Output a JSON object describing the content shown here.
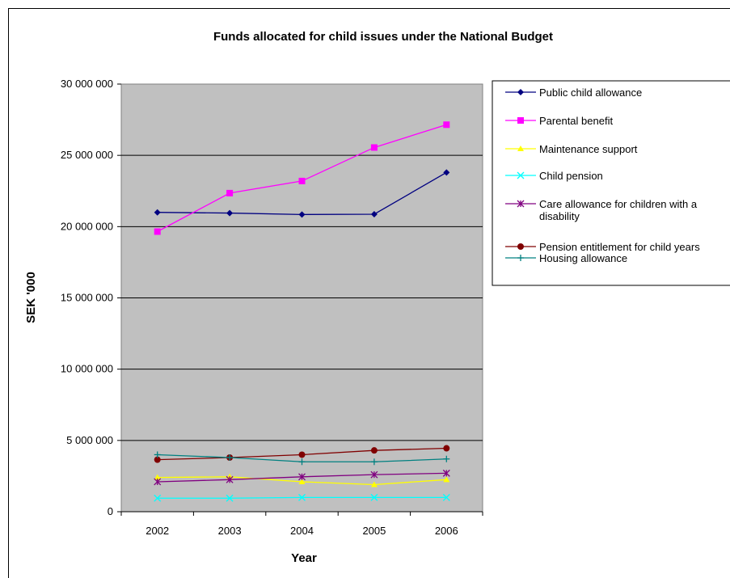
{
  "chart_data": {
    "type": "line",
    "title": "Funds allocated for child issues under the National Budget",
    "xlabel": "Year",
    "ylabel": "SEK '000",
    "categories": [
      "2002",
      "2003",
      "2004",
      "2005",
      "2006"
    ],
    "ylim": [
      0,
      30000000
    ],
    "yticks": [
      {
        "value": 0,
        "label": "0"
      },
      {
        "value": 5000000,
        "label": "5 000 000"
      },
      {
        "value": 10000000,
        "label": "10 000 000"
      },
      {
        "value": 15000000,
        "label": "15 000 000"
      },
      {
        "value": 20000000,
        "label": "20 000 000"
      },
      {
        "value": 25000000,
        "label": "25 000 000"
      },
      {
        "value": 30000000,
        "label": "30 000 000"
      }
    ],
    "grid": "horizontal",
    "plot_background": "#c0c0c0",
    "legend_position": "right",
    "series": [
      {
        "name": "Public child allowance",
        "lines": [
          "Public child allowance"
        ],
        "color": "#000080",
        "marker": "diamond",
        "values": [
          21000000,
          20950000,
          20850000,
          20870000,
          23800000
        ]
      },
      {
        "name": "Parental benefit",
        "lines": [
          "Parental benefit"
        ],
        "color": "#ff00ff",
        "marker": "square",
        "values": [
          19650000,
          22350000,
          23200000,
          25550000,
          27150000
        ]
      },
      {
        "name": "Maintenance support",
        "lines": [
          "Maintenance support"
        ],
        "color": "#ffff00",
        "marker": "triangle",
        "values": [
          2400000,
          2450000,
          2100000,
          1900000,
          2250000
        ]
      },
      {
        "name": "Child pension",
        "lines": [
          "Child pension"
        ],
        "color": "#00ffff",
        "marker": "x",
        "values": [
          950000,
          950000,
          1000000,
          1000000,
          1000000
        ]
      },
      {
        "name": "Care allowance for children with a disability",
        "lines": [
          "Care allowance for children with a",
          "disability"
        ],
        "color": "#800080",
        "marker": "asterisk",
        "values": [
          2100000,
          2250000,
          2450000,
          2600000,
          2700000
        ]
      },
      {
        "name": "Pension entitlement for child years",
        "lines": [
          "Pension entitlement for child years"
        ],
        "color": "#800000",
        "marker": "circle",
        "values": [
          3650000,
          3800000,
          4000000,
          4300000,
          4450000
        ]
      },
      {
        "name": "Housing allowance",
        "lines": [
          "Housing allowance"
        ],
        "color": "#008080",
        "marker": "plus",
        "values": [
          4000000,
          3800000,
          3500000,
          3500000,
          3700000
        ]
      }
    ]
  }
}
